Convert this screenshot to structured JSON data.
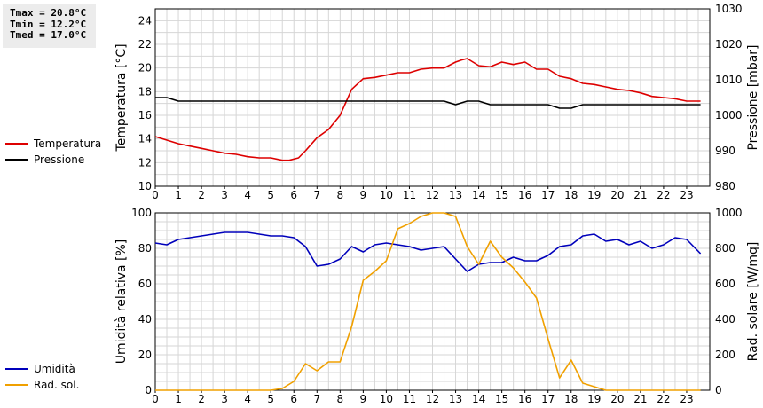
{
  "stats": {
    "tmax": "Tmax = 20.8°C",
    "tmin": "Tmin = 12.2°C",
    "tmed": "Tmed = 17.0°C"
  },
  "colors": {
    "temperature": "#dd0000",
    "pressure": "#000000",
    "humidity": "#0000bb",
    "radiation": "#f0a000",
    "grid": "#d6d6d6"
  },
  "chart_data": [
    {
      "type": "line",
      "grid": true,
      "xlim": [
        0,
        24
      ],
      "x_ticks": [
        0,
        1,
        2,
        3,
        4,
        5,
        6,
        7,
        8,
        9,
        10,
        11,
        12,
        13,
        14,
        15,
        16,
        17,
        18,
        19,
        20,
        21,
        22,
        23
      ],
      "ylabel_left": "Temperatura [°C]",
      "ylim_left": [
        10,
        25
      ],
      "y_ticks_left": [
        10,
        12,
        14,
        16,
        18,
        20,
        22,
        24
      ],
      "ylabel_right": "Pressione [mbar]",
      "ylim_right": [
        980,
        1030
      ],
      "y_ticks_right": [
        980,
        990,
        1000,
        1010,
        1020,
        1030
      ],
      "legend": "left",
      "series": [
        {
          "name": "Temperatura",
          "axis": "left",
          "x": [
            0,
            0.5,
            1,
            1.5,
            2,
            2.5,
            3,
            3.5,
            4,
            4.5,
            5,
            5.5,
            5.8,
            6.2,
            6.5,
            7,
            7.5,
            8,
            8.5,
            9,
            9.5,
            10,
            10.5,
            11,
            11.5,
            12,
            12.5,
            13,
            13.3,
            13.5,
            14,
            14.5,
            15,
            15.5,
            16,
            16.5,
            17,
            17.5,
            18,
            18.5,
            19,
            19.5,
            20,
            20.5,
            21,
            21.5,
            22,
            22.5,
            23,
            23.3,
            23.6
          ],
          "y": [
            14.2,
            13.9,
            13.6,
            13.4,
            13.2,
            13.0,
            12.8,
            12.7,
            12.5,
            12.4,
            12.4,
            12.2,
            12.2,
            12.4,
            13.0,
            14.1,
            14.8,
            16.0,
            18.2,
            19.1,
            19.2,
            19.4,
            19.6,
            19.6,
            19.9,
            20.0,
            20.0,
            20.5,
            20.7,
            20.8,
            20.2,
            20.1,
            20.5,
            20.3,
            20.5,
            19.9,
            19.9,
            19.3,
            19.1,
            18.7,
            18.6,
            18.4,
            18.2,
            18.1,
            17.9,
            17.6,
            17.5,
            17.4,
            17.2,
            17.2,
            17.2
          ]
        },
        {
          "name": "Pressione",
          "axis": "right",
          "x": [
            0,
            0.5,
            1,
            1.5,
            2,
            3,
            4,
            5,
            6,
            7,
            8,
            9,
            10,
            11,
            12,
            12.5,
            13,
            13.5,
            14,
            14.5,
            15,
            16,
            17,
            17.5,
            18,
            18.5,
            19,
            20,
            21,
            22,
            23,
            23.6
          ],
          "y": [
            1005,
            1005,
            1004,
            1004,
            1004,
            1004,
            1004,
            1004,
            1004,
            1004,
            1004,
            1004,
            1004,
            1004,
            1004,
            1004,
            1003,
            1004,
            1004,
            1003,
            1003,
            1003,
            1003,
            1002,
            1002,
            1003,
            1003,
            1003,
            1003,
            1003,
            1003,
            1003
          ]
        }
      ]
    },
    {
      "type": "line",
      "grid": true,
      "xlim": [
        0,
        24
      ],
      "x_ticks": [
        0,
        1,
        2,
        3,
        4,
        5,
        6,
        7,
        8,
        9,
        10,
        11,
        12,
        13,
        14,
        15,
        16,
        17,
        18,
        19,
        20,
        21,
        22,
        23
      ],
      "ylabel_left": "Umidità relativa [%]",
      "ylim_left": [
        0,
        100
      ],
      "y_ticks_left": [
        0,
        20,
        40,
        60,
        80,
        100
      ],
      "ylabel_right": "Rad. solare [W/mq]",
      "ylim_right": [
        0,
        1000
      ],
      "y_ticks_right": [
        0,
        200,
        400,
        600,
        800,
        1000
      ],
      "legend": "left",
      "series": [
        {
          "name": "Umidità",
          "axis": "left",
          "x": [
            0,
            0.5,
            1,
            1.5,
            2,
            2.5,
            3,
            3.5,
            4,
            4.5,
            5,
            5.5,
            6,
            6.5,
            7,
            7.5,
            8,
            8.5,
            9,
            9.5,
            10,
            10.5,
            11,
            11.5,
            12,
            12.5,
            13,
            13.5,
            14,
            14.5,
            15,
            15.5,
            16,
            16.5,
            17,
            17.5,
            18,
            18.5,
            19,
            19.5,
            20,
            20.5,
            21,
            21.5,
            22,
            22.5,
            23,
            23.6
          ],
          "y": [
            83,
            82,
            85,
            86,
            87,
            88,
            89,
            89,
            89,
            88,
            87,
            87,
            86,
            81,
            70,
            71,
            74,
            81,
            78,
            82,
            83,
            82,
            81,
            79,
            80,
            81,
            74,
            67,
            71,
            72,
            72,
            75,
            73,
            73,
            76,
            81,
            82,
            87,
            88,
            84,
            85,
            82,
            84,
            80,
            82,
            86,
            85,
            77
          ]
        },
        {
          "name": "Rad. sol.",
          "axis": "right",
          "x": [
            0,
            0.5,
            1,
            2,
            3,
            4,
            5,
            5.5,
            6,
            6.5,
            7,
            7.5,
            8,
            8.5,
            9,
            9.5,
            10,
            10.5,
            11,
            11.5,
            12,
            12.5,
            13,
            13.5,
            14,
            14.5,
            15,
            15.5,
            16,
            16.5,
            17,
            17.5,
            18,
            18.5,
            19,
            19.5,
            20,
            21,
            22,
            23,
            23.6
          ],
          "y": [
            0,
            0,
            0,
            0,
            0,
            0,
            0,
            10,
            50,
            150,
            110,
            160,
            160,
            360,
            620,
            670,
            730,
            910,
            940,
            980,
            1000,
            1000,
            980,
            810,
            710,
            840,
            750,
            690,
            610,
            520,
            290,
            70,
            170,
            40,
            20,
            0,
            0,
            0,
            0,
            0,
            0
          ]
        }
      ]
    }
  ]
}
